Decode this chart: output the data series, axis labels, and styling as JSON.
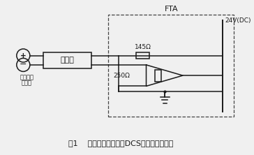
{
  "title_caption": "图1    智能压力变送器与DCS现场的连接回路",
  "fta_label": "FTA",
  "voltage_label": "24V(DC)",
  "r1_label": "145Ω",
  "r2_label": "250Ω",
  "safety_label": "安全栅",
  "transmitter_label_line1": "智能压力",
  "transmitter_label_line2": "变送器",
  "bg_color": "#f0f0f0",
  "line_color": "#1a1a1a",
  "dashed_color": "#444444"
}
